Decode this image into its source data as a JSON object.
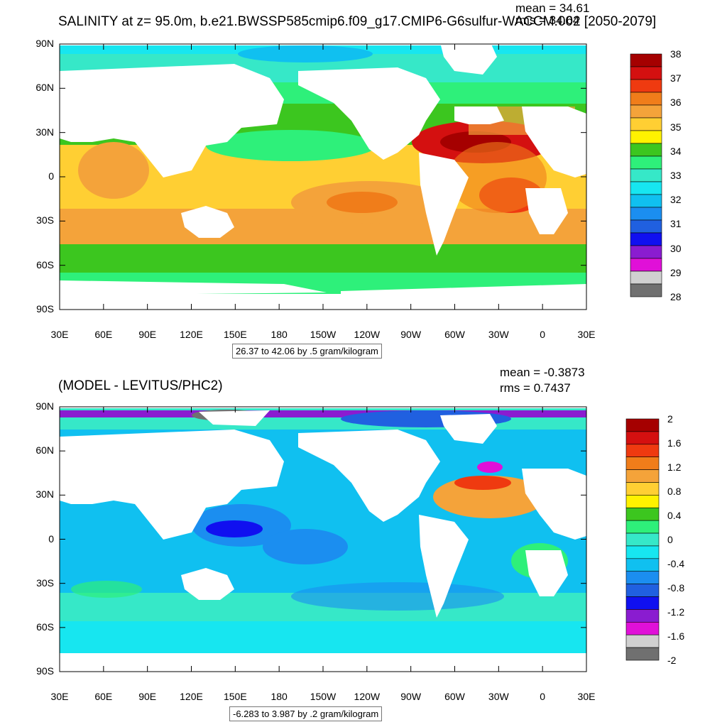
{
  "top": {
    "title": "SALINITY at z=  95.0m, b.e21.BWSSP585cmip6.f09_g17.CMIP6-G6sulfur-WACCM.002 [2050-2079]",
    "mean_label": "mean = 34.61",
    "rms_label": "rms = 34.64",
    "range_label": "26.37 to 42.06 by .5 gram/kilogram",
    "colorbar_labels": [
      "38",
      "37",
      "36",
      "35",
      "34",
      "33",
      "32",
      "31",
      "30",
      "29",
      "28"
    ],
    "colorbar_colors": [
      "#a50000",
      "#d41010",
      "#ef3a10",
      "#f07d1a",
      "#f4a33a",
      "#ffcf33",
      "#fff200",
      "#3cc61f",
      "#2ef07a",
      "#36e8c8",
      "#17e6f0",
      "#10c0f0",
      "#1b8ef0",
      "#2060e0",
      "#1010f0",
      "#8a1cd0",
      "#e010d8",
      "#d0d0d0",
      "#707070"
    ]
  },
  "bottom": {
    "title": "(MODEL - LEVITUS/PHC2)",
    "mean_label": "mean = -0.3873",
    "rms_label": "rms = 0.7437",
    "range_label": "-6.283 to 3.987 by .2 gram/kilogram",
    "colorbar_labels": [
      "2",
      "1.6",
      "1.2",
      "0.8",
      "0.4",
      "0",
      "-0.4",
      "-0.8",
      "-1.2",
      "-1.6",
      "-2"
    ],
    "colorbar_colors": [
      "#a50000",
      "#d41010",
      "#ef3a10",
      "#f07d1a",
      "#f4a33a",
      "#ffcf33",
      "#fff200",
      "#3cc61f",
      "#2ef07a",
      "#36e8c8",
      "#17e6f0",
      "#10c0f0",
      "#1b8ef0",
      "#2060e0",
      "#1010f0",
      "#8a1cd0",
      "#e010d8",
      "#d0d0d0",
      "#707070"
    ]
  },
  "axes": {
    "lat_ticks": [
      "90N",
      "60N",
      "30N",
      "0",
      "30S",
      "60S",
      "90S"
    ],
    "lon_ticks": [
      "30E",
      "60E",
      "90E",
      "120E",
      "150E",
      "180",
      "150W",
      "120W",
      "90W",
      "60W",
      "30W",
      "0",
      "30E"
    ]
  }
}
